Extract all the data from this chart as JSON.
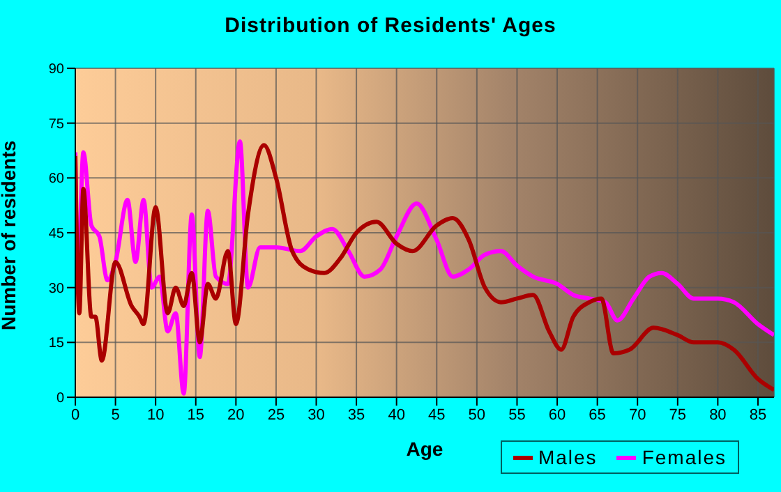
{
  "chart_data": {
    "type": "line",
    "title": "Distribution of Residents' Ages",
    "xlabel": "Age",
    "ylabel": "Number of residents",
    "xlim": [
      0,
      87
    ],
    "xticks": [
      0,
      5,
      10,
      15,
      20,
      25,
      30,
      35,
      40,
      45,
      50,
      55,
      60,
      65,
      70,
      75,
      80,
      85
    ],
    "ylim": [
      0,
      90
    ],
    "yticks": [
      0,
      15,
      30,
      45,
      60,
      75,
      90
    ],
    "grid": true,
    "legend": "bottom right",
    "marker": "none",
    "line_style": "solid",
    "series": [
      {
        "name": "Males",
        "color": "#aa0000",
        "x": [
          0,
          0.5,
          1,
          2,
          2.5,
          3.3,
          5,
          7,
          8,
          8.5,
          10,
          11.5,
          12.5,
          13.5,
          14.5,
          15.5,
          16.5,
          17.5,
          19,
          20,
          21.5,
          23.5,
          25,
          27,
          29,
          31,
          33,
          35,
          37.5,
          40,
          42,
          45,
          47,
          49,
          51,
          53,
          55,
          57,
          59,
          60.5,
          62,
          64,
          65.5,
          67,
          69,
          72,
          75,
          77,
          80,
          82,
          85,
          87
        ],
        "values": [
          66,
          23,
          57,
          22,
          22,
          10,
          37,
          25,
          22,
          20,
          52,
          23,
          30,
          25,
          34,
          15,
          31,
          27,
          40,
          20,
          50,
          69,
          60,
          40,
          35,
          34,
          38,
          45,
          48,
          42,
          40,
          47,
          49,
          43,
          30,
          26,
          27,
          28,
          18,
          13,
          22,
          26,
          27,
          12,
          13,
          19,
          17,
          15,
          15,
          13,
          5,
          2
        ]
      },
      {
        "name": "Females",
        "color": "#ff00ff",
        "x": [
          0,
          0.3,
          1,
          2,
          3,
          4,
          5,
          6.5,
          7.5,
          8.5,
          9.5,
          10.5,
          11.5,
          12.5,
          13.5,
          14.5,
          15.5,
          16.5,
          17.5,
          19,
          20.5,
          21.5,
          23,
          25,
          28,
          30,
          32,
          34,
          36,
          38,
          40,
          42.5,
          45,
          47,
          49,
          51,
          53,
          55,
          57,
          60,
          62,
          64,
          66,
          67.5,
          69.5,
          71.5,
          73,
          75,
          77,
          80,
          82,
          85,
          87
        ],
        "values": [
          67,
          30,
          67,
          47,
          44,
          32,
          37,
          54,
          37,
          54,
          30,
          33,
          18,
          23,
          1,
          50,
          11,
          51,
          33,
          31,
          70,
          30,
          41,
          41,
          40,
          44,
          46,
          40,
          33,
          35,
          44,
          53,
          43,
          33,
          35,
          39,
          40,
          36,
          33,
          31,
          28,
          27,
          26,
          21,
          27,
          33,
          34,
          31,
          27,
          27,
          26,
          20,
          17
        ]
      }
    ]
  }
}
